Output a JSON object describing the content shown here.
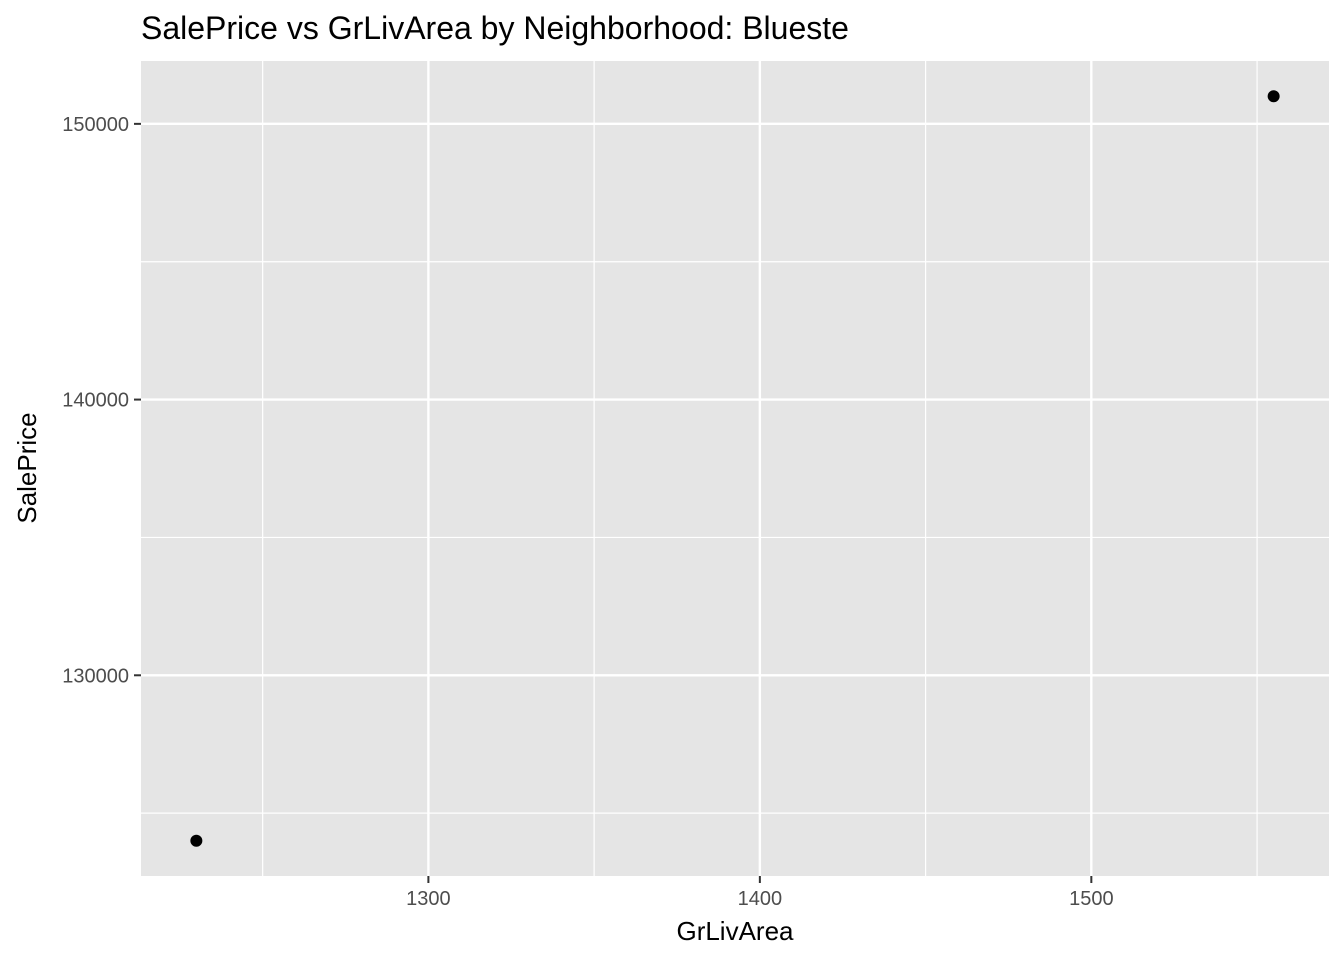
{
  "chart_data": {
    "type": "scatter",
    "title": "SalePrice vs GrLivArea by Neighborhood: Blueste",
    "xlabel": "GrLivArea",
    "ylabel": "SalePrice",
    "xlim": [
      1213.3,
      1571.7
    ],
    "ylim": [
      122720,
      152280
    ],
    "x_ticks": [
      1300,
      1400,
      1500
    ],
    "x_tick_labels": [
      "1300",
      "1400",
      "1500"
    ],
    "x_minor_ticks": [
      1250,
      1350,
      1450,
      1550
    ],
    "y_ticks": [
      130000,
      140000,
      150000
    ],
    "y_tick_labels": [
      "130000",
      "140000",
      "150000"
    ],
    "y_minor_ticks": [
      125000,
      135000,
      145000
    ],
    "grid": true,
    "legend": "none",
    "points": [
      {
        "x": 1230,
        "y": 124000
      },
      {
        "x": 1555,
        "y": 151000
      }
    ],
    "colors": {
      "panel_background": "#e5e5e5",
      "grid_line": "#ffffff",
      "point": "#000000",
      "tick_mark": "#333333",
      "tick_label": "#4d4d4d"
    }
  }
}
